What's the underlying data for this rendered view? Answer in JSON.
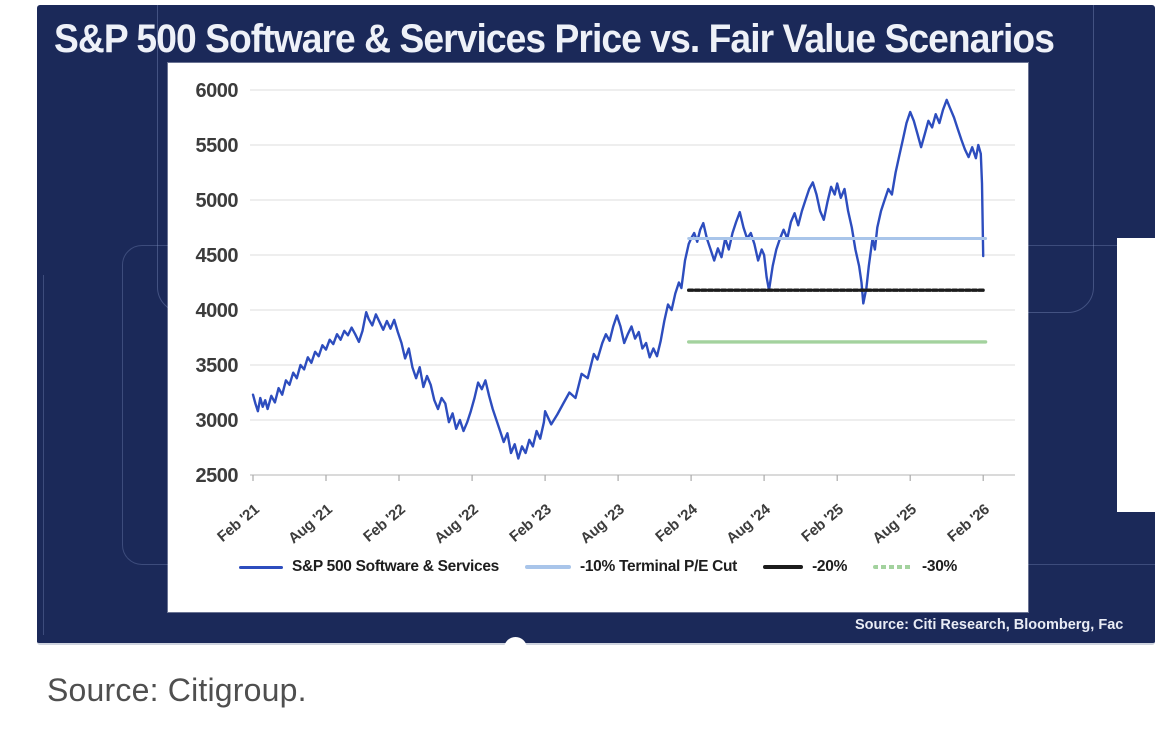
{
  "page": {
    "caption": "Source: Citigroup."
  },
  "slide": {
    "title": "S&P 500 Software & Services Price vs. Fair Value Scenarios",
    "source_note": "Source: Citi Research, Bloomberg, Fac",
    "bg_color": "#1b2959",
    "panel_bg": "#ffffff",
    "title_color": "#eef1f8"
  },
  "chart_data": {
    "type": "line",
    "title": "",
    "xlabel": "",
    "ylabel": "",
    "ylim": [
      2500,
      6000
    ],
    "grid": true,
    "grid_color": "#e4e4e4",
    "axis_label_color": "#3c3c3c",
    "legend_position": "bottom",
    "y_ticks": [
      2500,
      3000,
      3500,
      4000,
      4500,
      5000,
      5500,
      6000
    ],
    "x_tick_labels": [
      "Feb '21",
      "Aug '21",
      "Feb '22",
      "Aug '22",
      "Feb '23",
      "Aug '23",
      "Feb '24",
      "Aug '24",
      "Feb '25",
      "Aug '25",
      "Feb '26"
    ],
    "x_tick_months": [
      0,
      6,
      12,
      18,
      24,
      30,
      36,
      42,
      48,
      54,
      60
    ],
    "x_unit": "months since Feb 2021",
    "series": [
      {
        "name": "S&P 500 Software & Services",
        "color": "#2d4dbe",
        "plot_dash": false,
        "legend_dash": false,
        "points": [
          [
            0,
            3230
          ],
          [
            0.2,
            3150
          ],
          [
            0.4,
            3080
          ],
          [
            0.6,
            3200
          ],
          [
            0.8,
            3120
          ],
          [
            1,
            3180
          ],
          [
            1.2,
            3100
          ],
          [
            1.5,
            3220
          ],
          [
            1.8,
            3160
          ],
          [
            2.1,
            3290
          ],
          [
            2.4,
            3230
          ],
          [
            2.7,
            3360
          ],
          [
            3,
            3320
          ],
          [
            3.3,
            3430
          ],
          [
            3.6,
            3380
          ],
          [
            3.9,
            3500
          ],
          [
            4.2,
            3460
          ],
          [
            4.5,
            3570
          ],
          [
            4.8,
            3520
          ],
          [
            5.1,
            3620
          ],
          [
            5.4,
            3580
          ],
          [
            5.7,
            3680
          ],
          [
            6,
            3640
          ],
          [
            6.3,
            3730
          ],
          [
            6.6,
            3690
          ],
          [
            6.9,
            3780
          ],
          [
            7.2,
            3730
          ],
          [
            7.5,
            3810
          ],
          [
            7.8,
            3770
          ],
          [
            8.1,
            3840
          ],
          [
            8.4,
            3780
          ],
          [
            8.7,
            3710
          ],
          [
            9,
            3810
          ],
          [
            9.3,
            3980
          ],
          [
            9.5,
            3920
          ],
          [
            9.8,
            3860
          ],
          [
            10.1,
            3960
          ],
          [
            10.4,
            3890
          ],
          [
            10.7,
            3820
          ],
          [
            11,
            3900
          ],
          [
            11.3,
            3830
          ],
          [
            11.6,
            3910
          ],
          [
            11.9,
            3800
          ],
          [
            12.2,
            3700
          ],
          [
            12.5,
            3560
          ],
          [
            12.8,
            3650
          ],
          [
            13.1,
            3480
          ],
          [
            13.4,
            3380
          ],
          [
            13.7,
            3480
          ],
          [
            14,
            3300
          ],
          [
            14.3,
            3400
          ],
          [
            14.6,
            3320
          ],
          [
            14.9,
            3180
          ],
          [
            15.2,
            3100
          ],
          [
            15.5,
            3200
          ],
          [
            15.8,
            3150
          ],
          [
            16.1,
            2980
          ],
          [
            16.4,
            3060
          ],
          [
            16.7,
            2920
          ],
          [
            17,
            3000
          ],
          [
            17.3,
            2900
          ],
          [
            17.6,
            2980
          ],
          [
            17.9,
            3080
          ],
          [
            18.2,
            3200
          ],
          [
            18.5,
            3340
          ],
          [
            18.8,
            3280
          ],
          [
            19.1,
            3360
          ],
          [
            19.4,
            3220
          ],
          [
            19.7,
            3100
          ],
          [
            20,
            3000
          ],
          [
            20.3,
            2900
          ],
          [
            20.6,
            2800
          ],
          [
            20.9,
            2880
          ],
          [
            21.2,
            2700
          ],
          [
            21.5,
            2780
          ],
          [
            21.8,
            2650
          ],
          [
            22.1,
            2760
          ],
          [
            22.4,
            2700
          ],
          [
            22.7,
            2820
          ],
          [
            23,
            2760
          ],
          [
            23.3,
            2900
          ],
          [
            23.6,
            2830
          ],
          [
            23.9,
            2980
          ],
          [
            24,
            3080
          ],
          [
            24.5,
            2960
          ],
          [
            25,
            3050
          ],
          [
            25.5,
            3150
          ],
          [
            26,
            3250
          ],
          [
            26.5,
            3200
          ],
          [
            27,
            3420
          ],
          [
            27.5,
            3380
          ],
          [
            28,
            3600
          ],
          [
            28.3,
            3550
          ],
          [
            28.7,
            3700
          ],
          [
            29,
            3780
          ],
          [
            29.3,
            3720
          ],
          [
            29.6,
            3850
          ],
          [
            29.9,
            3950
          ],
          [
            30.2,
            3850
          ],
          [
            30.5,
            3700
          ],
          [
            30.8,
            3780
          ],
          [
            31.1,
            3850
          ],
          [
            31.4,
            3740
          ],
          [
            31.7,
            3800
          ],
          [
            32,
            3650
          ],
          [
            32.3,
            3700
          ],
          [
            32.6,
            3570
          ],
          [
            32.9,
            3650
          ],
          [
            33.2,
            3580
          ],
          [
            33.5,
            3720
          ],
          [
            33.8,
            3900
          ],
          [
            34.1,
            4050
          ],
          [
            34.4,
            4000
          ],
          [
            34.7,
            4150
          ],
          [
            35,
            4250
          ],
          [
            35.2,
            4200
          ],
          [
            35.5,
            4450
          ],
          [
            35.8,
            4600
          ],
          [
            36,
            4650
          ],
          [
            36.25,
            4700
          ],
          [
            36.5,
            4620
          ],
          [
            36.75,
            4730
          ],
          [
            37,
            4790
          ],
          [
            37.3,
            4650
          ],
          [
            37.6,
            4550
          ],
          [
            37.9,
            4450
          ],
          [
            38.2,
            4560
          ],
          [
            38.5,
            4480
          ],
          [
            38.8,
            4650
          ],
          [
            39.1,
            4550
          ],
          [
            39.4,
            4700
          ],
          [
            39.7,
            4800
          ],
          [
            40,
            4890
          ],
          [
            40.3,
            4750
          ],
          [
            40.6,
            4650
          ],
          [
            40.9,
            4700
          ],
          [
            41.2,
            4600
          ],
          [
            41.5,
            4450
          ],
          [
            41.8,
            4550
          ],
          [
            42,
            4500
          ],
          [
            42.2,
            4300
          ],
          [
            42.4,
            4180
          ],
          [
            42.7,
            4400
          ],
          [
            43,
            4550
          ],
          [
            43.3,
            4650
          ],
          [
            43.6,
            4730
          ],
          [
            43.9,
            4650
          ],
          [
            44.2,
            4800
          ],
          [
            44.5,
            4880
          ],
          [
            44.8,
            4770
          ],
          [
            45.1,
            4900
          ],
          [
            45.4,
            5000
          ],
          [
            45.7,
            5100
          ],
          [
            46,
            5160
          ],
          [
            46.3,
            5050
          ],
          [
            46.6,
            4900
          ],
          [
            46.9,
            4820
          ],
          [
            47.2,
            4980
          ],
          [
            47.5,
            5120
          ],
          [
            47.8,
            5050
          ],
          [
            48,
            5150
          ],
          [
            48.3,
            5020
          ],
          [
            48.6,
            5100
          ],
          [
            48.9,
            4900
          ],
          [
            49.2,
            4750
          ],
          [
            49.5,
            4550
          ],
          [
            49.8,
            4400
          ],
          [
            50,
            4250
          ],
          [
            50.15,
            4060
          ],
          [
            50.4,
            4200
          ],
          [
            50.6,
            4400
          ],
          [
            50.9,
            4650
          ],
          [
            51.1,
            4550
          ],
          [
            51.3,
            4750
          ],
          [
            51.6,
            4900
          ],
          [
            51.9,
            5000
          ],
          [
            52.2,
            5100
          ],
          [
            52.5,
            5050
          ],
          [
            52.8,
            5250
          ],
          [
            53.1,
            5400
          ],
          [
            53.4,
            5550
          ],
          [
            53.7,
            5700
          ],
          [
            54,
            5800
          ],
          [
            54.3,
            5720
          ],
          [
            54.6,
            5600
          ],
          [
            54.9,
            5480
          ],
          [
            55.2,
            5600
          ],
          [
            55.5,
            5720
          ],
          [
            55.8,
            5660
          ],
          [
            56.1,
            5780
          ],
          [
            56.4,
            5700
          ],
          [
            56.7,
            5820
          ],
          [
            57,
            5910
          ],
          [
            57.3,
            5830
          ],
          [
            57.6,
            5750
          ],
          [
            57.9,
            5650
          ],
          [
            58.2,
            5550
          ],
          [
            58.5,
            5460
          ],
          [
            58.8,
            5390
          ],
          [
            59.1,
            5480
          ],
          [
            59.4,
            5380
          ],
          [
            59.6,
            5500
          ],
          [
            59.8,
            5420
          ],
          [
            59.9,
            5150
          ],
          [
            60,
            4490
          ]
        ]
      },
      {
        "name": "-10% Terminal P/E Cut",
        "color": "#a9c5ea",
        "plot_dash": false,
        "legend_dash": false,
        "value": 4650,
        "points": [
          [
            35.8,
            4650
          ],
          [
            60.2,
            4650
          ]
        ]
      },
      {
        "name": "-20%",
        "color": "#1c1c1c",
        "plot_dash": true,
        "legend_dash": false,
        "value": 4180,
        "points": [
          [
            35.8,
            4180
          ],
          [
            60.2,
            4180
          ]
        ]
      },
      {
        "name": "-30%",
        "color": "#a3d29e",
        "plot_dash": false,
        "legend_dash": true,
        "value": 3710,
        "points": [
          [
            35.8,
            3710
          ],
          [
            60.2,
            3710
          ]
        ]
      }
    ]
  }
}
